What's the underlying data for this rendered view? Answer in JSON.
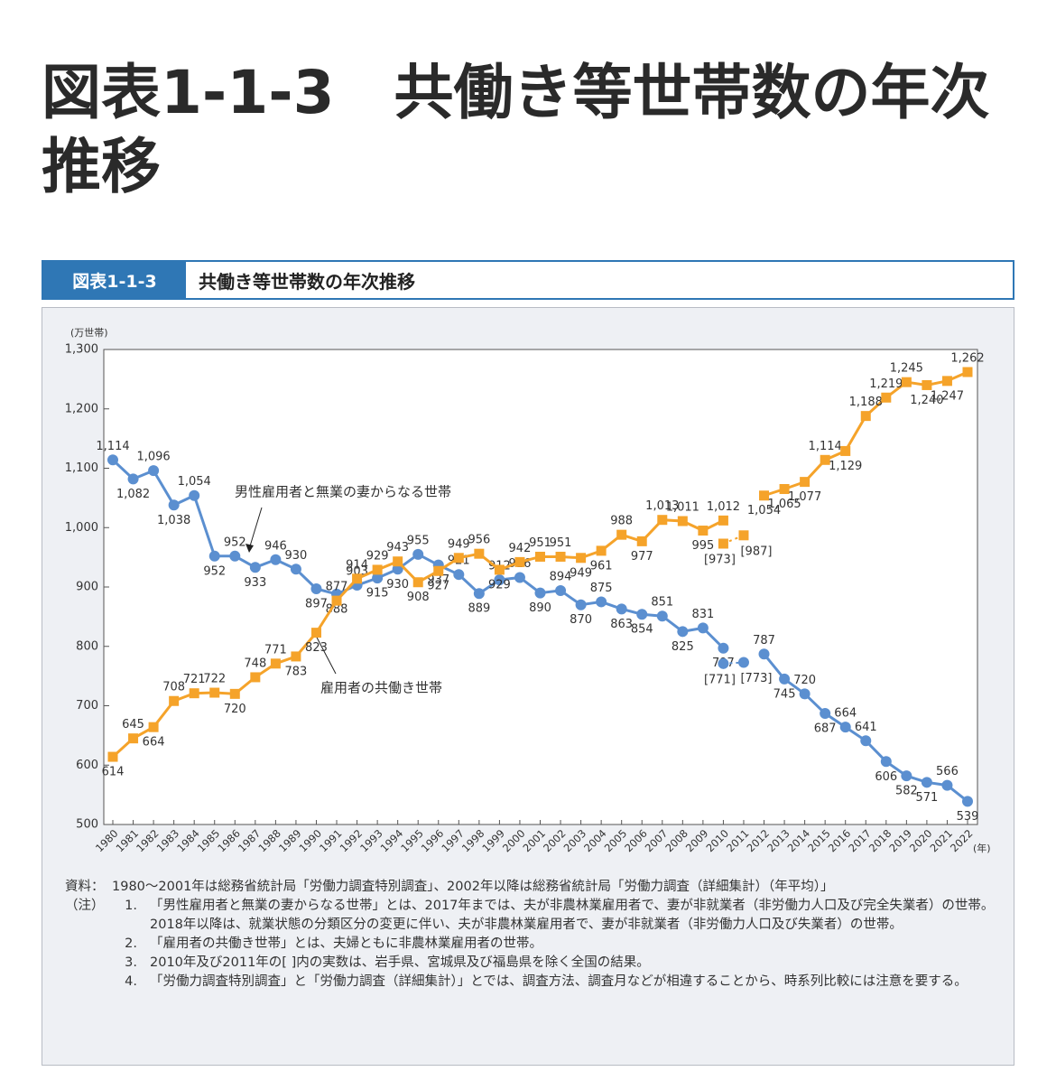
{
  "page_title": "図表1-1-3　共働き等世帯数の年次推移",
  "figure_label": "図表1-1-3",
  "figure_title": "共働き等世帯数の年次推移",
  "chart_data": {
    "type": "line",
    "y_unit": "(万世帯)",
    "x_unit": "(年)",
    "categories": [
      "1980",
      "1981",
      "1982",
      "1983",
      "1984",
      "1985",
      "1986",
      "1987",
      "1988",
      "1989",
      "1990",
      "1991",
      "1992",
      "1993",
      "1994",
      "1995",
      "1996",
      "1997",
      "1998",
      "1999",
      "2000",
      "2001",
      "2002",
      "2003",
      "2004",
      "2005",
      "2006",
      "2007",
      "2008",
      "2009",
      "2010",
      "2011",
      "2012",
      "2013",
      "2014",
      "2015",
      "2016",
      "2017",
      "2018",
      "2019",
      "2020",
      "2021",
      "2022"
    ],
    "ylim": [
      500,
      1300
    ],
    "yticks": [
      500,
      600,
      700,
      800,
      900,
      {
        "value": 1000,
        "label": "1,000"
      },
      {
        "value": 1100,
        "label": "1,100"
      },
      {
        "value": 1200,
        "label": "1,200"
      },
      {
        "value": 1300,
        "label": "1,300"
      }
    ],
    "grid": false,
    "series": [
      {
        "name": "男性雇用者と無業の妻からなる世帯",
        "color": "#5b8fd0",
        "marker": "circle",
        "line_style": "solid",
        "values": [
          1114,
          1082,
          1096,
          1038,
          1054,
          952,
          952,
          933,
          946,
          930,
          897,
          888,
          903,
          915,
          930,
          955,
          937,
          921,
          889,
          912,
          916,
          890,
          894,
          870,
          875,
          863,
          854,
          851,
          825,
          831,
          797,
          null,
          787,
          745,
          720,
          687,
          664,
          641,
          606,
          582,
          571,
          566,
          539
        ],
        "value_labels": [
          "1,114",
          "1,082",
          "1,096",
          "1,038",
          "1,054",
          "952",
          "952",
          "933",
          "946",
          "930",
          "897",
          "888",
          "903",
          "915",
          "930",
          "955",
          "937",
          "921",
          "889",
          "912",
          "916",
          "890",
          "894",
          "870",
          "875",
          "863",
          "854",
          "851",
          "825",
          "831",
          "797",
          null,
          "787",
          "745",
          "720",
          "687",
          "664",
          "641",
          "606",
          "582",
          "571",
          "566",
          "539"
        ]
      },
      {
        "name": "雇用者の共働き世帯",
        "color": "#f5a32a",
        "marker": "square",
        "line_style": "solid",
        "values": [
          614,
          645,
          664,
          708,
          721,
          722,
          720,
          748,
          771,
          783,
          823,
          877,
          914,
          929,
          943,
          908,
          927,
          949,
          956,
          929,
          942,
          951,
          951,
          949,
          961,
          988,
          977,
          1013,
          1011,
          995,
          1012,
          null,
          1054,
          1065,
          1077,
          1114,
          1129,
          1188,
          1219,
          1245,
          1240,
          1247,
          1262
        ],
        "value_labels": [
          "614",
          "645",
          "664",
          "708",
          "721",
          "722",
          "720",
          "748",
          "771",
          "783",
          "823",
          "877",
          "914",
          "929",
          "943",
          "908",
          "927",
          "949",
          "956",
          "929",
          "942",
          "951",
          "951",
          "949",
          "961",
          "988",
          "977",
          "1,013",
          "1,011",
          "995",
          "1,012",
          null,
          "1,054",
          "1,065",
          "1,077",
          "1,114",
          "1,129",
          "1,188",
          "1,219",
          "1,245",
          "1,240",
          "1,247",
          "1,262"
        ]
      },
      {
        "color": "#5b8fd0",
        "marker": "circle",
        "line_style": "dotted",
        "values": [
          null,
          null,
          null,
          null,
          null,
          null,
          null,
          null,
          null,
          null,
          null,
          null,
          null,
          null,
          null,
          null,
          null,
          null,
          null,
          null,
          null,
          null,
          null,
          null,
          null,
          null,
          null,
          null,
          null,
          null,
          771,
          773,
          null,
          null,
          null,
          null,
          null,
          null,
          null,
          null,
          null,
          null,
          null
        ],
        "value_labels": [
          null,
          null,
          null,
          null,
          null,
          null,
          null,
          null,
          null,
          null,
          null,
          null,
          null,
          null,
          null,
          null,
          null,
          null,
          null,
          null,
          null,
          null,
          null,
          null,
          null,
          null,
          null,
          null,
          null,
          null,
          "[771]",
          "[773]",
          null,
          null,
          null,
          null,
          null,
          null,
          null,
          null,
          null,
          null,
          null
        ]
      },
      {
        "color": "#f5a32a",
        "marker": "square",
        "line_style": "dotted",
        "values": [
          null,
          null,
          null,
          null,
          null,
          null,
          null,
          null,
          null,
          null,
          null,
          null,
          null,
          null,
          null,
          null,
          null,
          null,
          null,
          null,
          null,
          null,
          null,
          null,
          null,
          null,
          null,
          null,
          null,
          null,
          973,
          987,
          null,
          null,
          null,
          null,
          null,
          null,
          null,
          null,
          null,
          null,
          null
        ],
        "value_labels": [
          null,
          null,
          null,
          null,
          null,
          null,
          null,
          null,
          null,
          null,
          null,
          null,
          null,
          null,
          null,
          null,
          null,
          null,
          null,
          null,
          null,
          null,
          null,
          null,
          null,
          null,
          null,
          null,
          null,
          null,
          "[973]",
          "[987]",
          null,
          null,
          null,
          null,
          null,
          null,
          null,
          null,
          null,
          null,
          null
        ]
      }
    ]
  },
  "source": {
    "label": "資料：",
    "text": "1980～2001年は総務省統計局「労働力調査特別調査」、2002年以降は総務省統計局「労働力調査（詳細集計）（年平均）」"
  },
  "notes": {
    "label": "（注）",
    "items": [
      {
        "number": "1.",
        "text": "「男性雇用者と無業の妻からなる世帯」とは、2017年までは、夫が非農林業雇用者で、妻が非就業者（非労働力人口及び完全失業者）の世帯。2018年以降は、就業状態の分類区分の変更に伴い、夫が非農林業雇用者で、妻が非就業者（非労働力人口及び失業者）の世帯。"
      },
      {
        "number": "2.",
        "text": "「雇用者の共働き世帯」とは、夫婦ともに非農林業雇用者の世帯。"
      },
      {
        "number": "3.",
        "text": "2010年及び2011年の[ ]内の実数は、岩手県、宮城県及び福島県を除く全国の結果。"
      },
      {
        "number": "4.",
        "text": "「労働力調査特別調査」と「労働力調査（詳細集計）」とでは、調査方法、調査月などが相違することから、時系列比較には注意を要する。"
      }
    ]
  }
}
